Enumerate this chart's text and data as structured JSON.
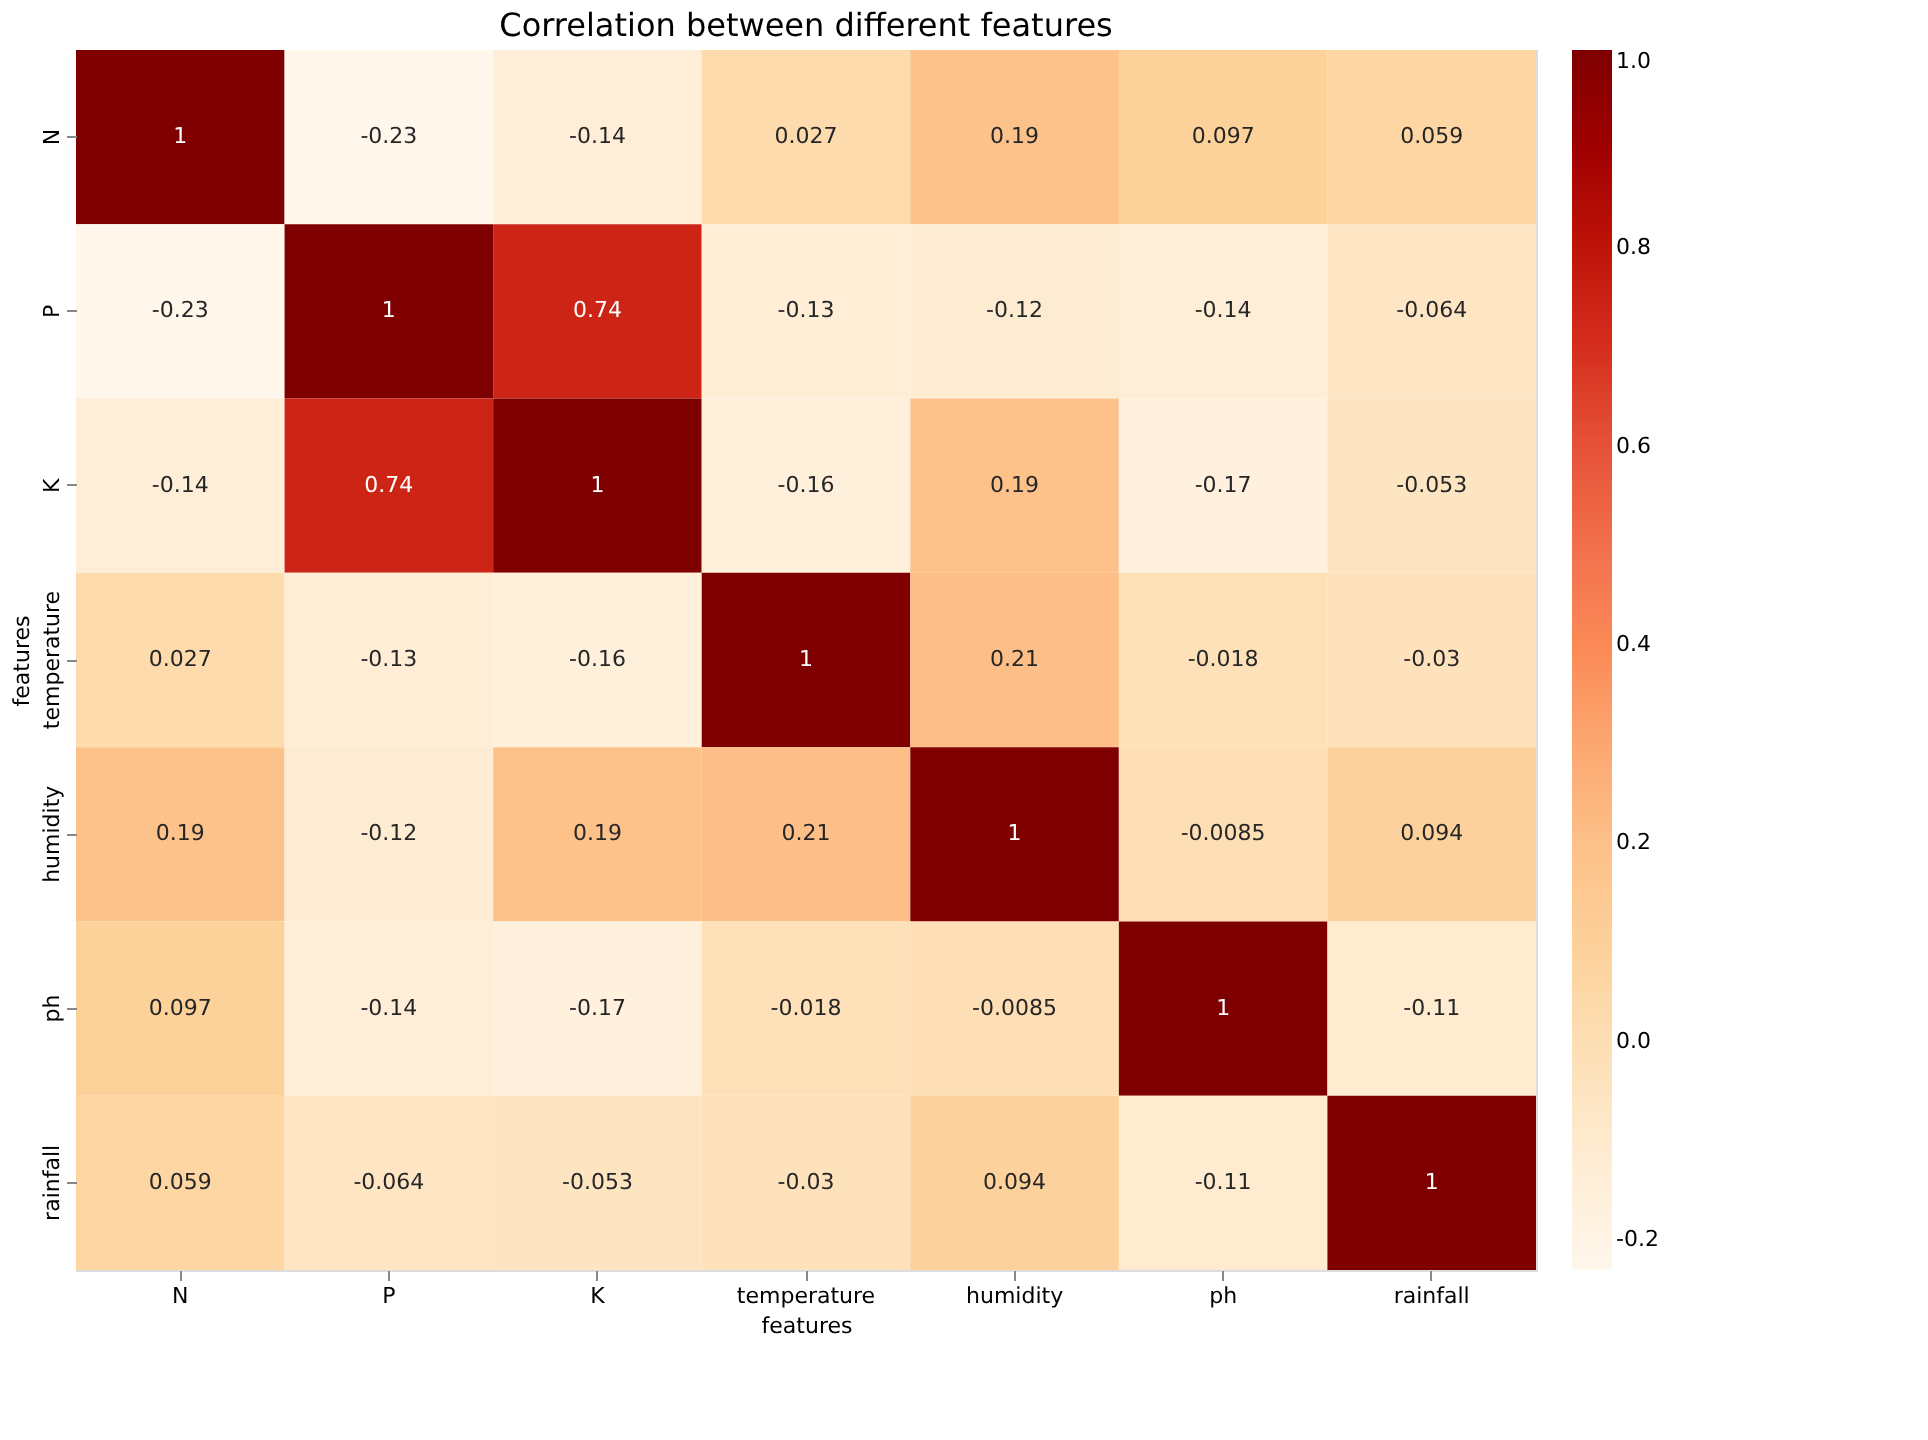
{
  "chart_data": {
    "type": "heatmap",
    "title": "Correlation between different features",
    "xlabel": "features",
    "ylabel": "features",
    "categories": [
      "N",
      "P",
      "K",
      "temperature",
      "humidity",
      "ph",
      "rainfall"
    ],
    "y_categories": [
      "N",
      "P",
      "K",
      "temperature",
      "humidity",
      "ph",
      "rainfall"
    ],
    "cells": [
      [
        1,
        -0.23,
        -0.14,
        0.027,
        0.19,
        0.097,
        0.059
      ],
      [
        -0.23,
        1,
        0.74,
        -0.13,
        -0.12,
        -0.14,
        -0.064
      ],
      [
        -0.14,
        0.74,
        1,
        -0.16,
        0.19,
        -0.17,
        -0.053
      ],
      [
        0.027,
        -0.13,
        -0.16,
        1,
        0.21,
        -0.018,
        -0.03
      ],
      [
        0.19,
        -0.12,
        0.19,
        0.21,
        1,
        -0.0085,
        0.094
      ],
      [
        0.097,
        -0.14,
        -0.17,
        -0.018,
        -0.0085,
        1,
        -0.11
      ],
      [
        0.059,
        -0.064,
        -0.053,
        -0.03,
        0.094,
        -0.11,
        1
      ]
    ],
    "clim": [
      -0.23,
      1
    ],
    "cticks": [
      -0.2,
      {
        "value": 0,
        "label": "0.0"
      },
      0.2,
      0.4,
      0.6,
      0.8,
      {
        "value": 1,
        "label": "1.0"
      }
    ],
    "data_labels": true
  }
}
